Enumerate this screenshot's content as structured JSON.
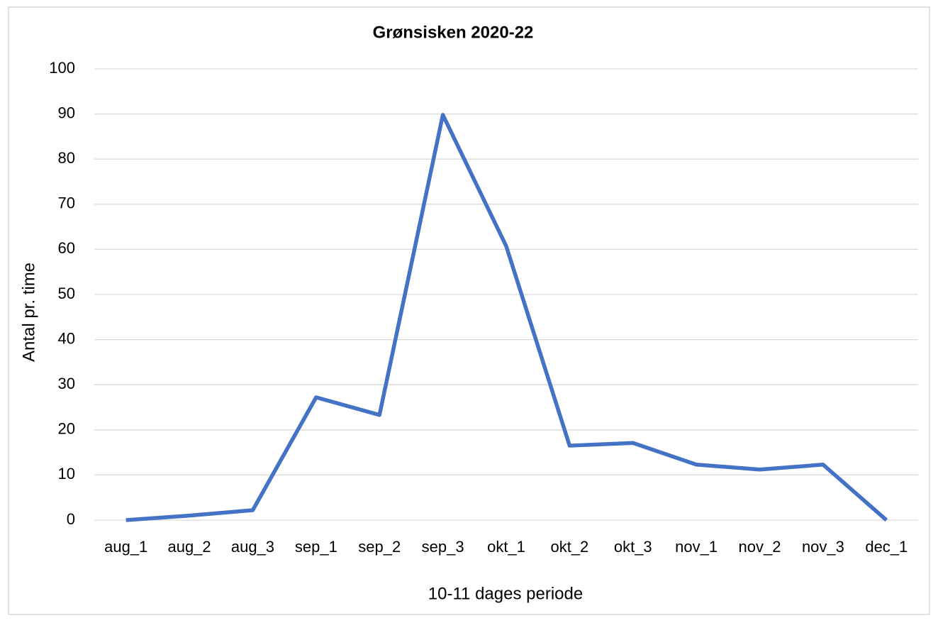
{
  "chart_data": {
    "type": "line",
    "title": "Grønsisken 2020-22",
    "x_label": "10-11 dages periode",
    "y_label": "Antal pr. time",
    "categories": [
      "aug_1",
      "aug_2",
      "aug_3",
      "sep_1",
      "sep_2",
      "sep_3",
      "okt_1",
      "okt_2",
      "okt_3",
      "nov_1",
      "nov_2",
      "nov_3",
      "dec_1"
    ],
    "series": [
      {
        "name": "Grønsisken",
        "color": "#4472c4",
        "values": [
          0,
          1,
          2.2,
          27.2,
          23.3,
          89.8,
          60.7,
          16.5,
          17.1,
          12.3,
          11.2,
          12.3,
          0
        ]
      }
    ],
    "ylim": [
      0,
      100
    ],
    "yticks": [
      0,
      10,
      20,
      30,
      40,
      50,
      60,
      70,
      80,
      90,
      100
    ],
    "grid": true
  }
}
